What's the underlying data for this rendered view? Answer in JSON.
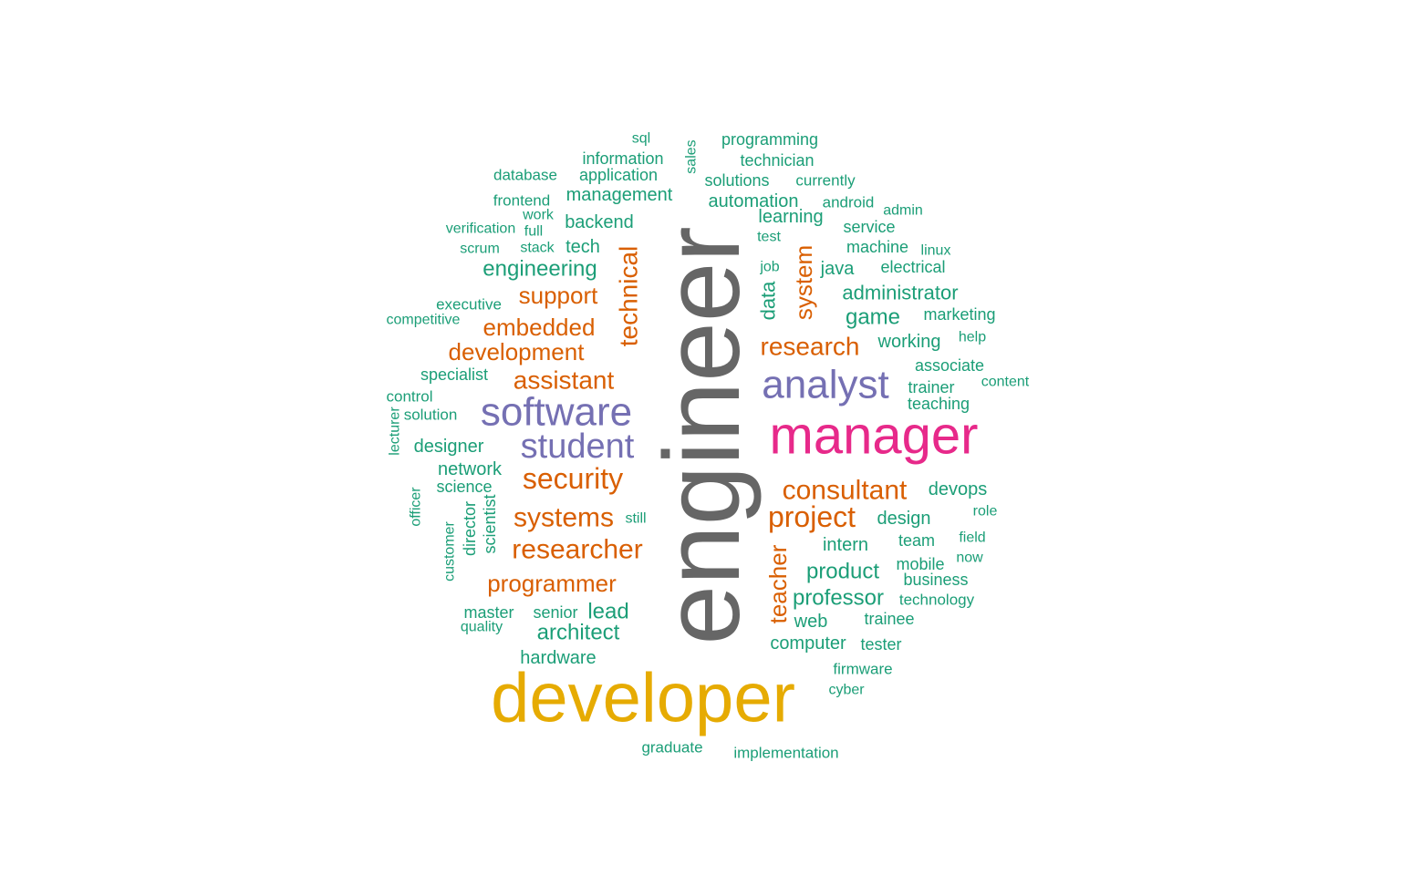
{
  "colors": {
    "engineer": "#666666",
    "gold": "#e6ab02",
    "magenta": "#e7298a",
    "purple": "#7570b3",
    "orange": "#d95f02",
    "teal": "#1b9e77"
  },
  "words": [
    {
      "text": "engineer",
      "color": "engineer"
    },
    {
      "text": "developer",
      "color": "gold"
    },
    {
      "text": "manager",
      "color": "magenta"
    },
    {
      "text": "software",
      "color": "purple"
    },
    {
      "text": "analyst",
      "color": "purple"
    },
    {
      "text": "student",
      "color": "purple"
    },
    {
      "text": "security",
      "color": "orange"
    },
    {
      "text": "consultant",
      "color": "orange"
    },
    {
      "text": "project",
      "color": "orange"
    },
    {
      "text": "systems",
      "color": "orange"
    },
    {
      "text": "researcher",
      "color": "orange"
    },
    {
      "text": "assistant",
      "color": "orange"
    },
    {
      "text": "research",
      "color": "orange"
    },
    {
      "text": "programmer",
      "color": "orange"
    },
    {
      "text": "embedded",
      "color": "orange"
    },
    {
      "text": "development",
      "color": "orange"
    },
    {
      "text": "support",
      "color": "orange"
    },
    {
      "text": "technical",
      "color": "orange"
    },
    {
      "text": "system",
      "color": "orange"
    },
    {
      "text": "teacher",
      "color": "orange"
    },
    {
      "text": "engineering",
      "color": "teal"
    },
    {
      "text": "administrator",
      "color": "teal"
    },
    {
      "text": "game",
      "color": "teal"
    },
    {
      "text": "product",
      "color": "teal"
    },
    {
      "text": "professor",
      "color": "teal"
    },
    {
      "text": "architect",
      "color": "teal"
    },
    {
      "text": "lead",
      "color": "teal"
    },
    {
      "text": "management",
      "color": "teal"
    },
    {
      "text": "backend",
      "color": "teal"
    },
    {
      "text": "automation",
      "color": "teal"
    },
    {
      "text": "design",
      "color": "teal"
    },
    {
      "text": "intern",
      "color": "teal"
    },
    {
      "text": "designer",
      "color": "teal"
    },
    {
      "text": "network",
      "color": "teal"
    },
    {
      "text": "hardware",
      "color": "teal"
    },
    {
      "text": "working",
      "color": "teal"
    },
    {
      "text": "devops",
      "color": "teal"
    },
    {
      "text": "computer",
      "color": "teal"
    },
    {
      "text": "learning",
      "color": "teal"
    },
    {
      "text": "data",
      "color": "teal"
    },
    {
      "text": "tech",
      "color": "teal"
    },
    {
      "text": "java",
      "color": "teal"
    },
    {
      "text": "electrical",
      "color": "teal"
    },
    {
      "text": "marketing",
      "color": "teal"
    },
    {
      "text": "associate",
      "color": "teal"
    },
    {
      "text": "business",
      "color": "teal"
    },
    {
      "text": "team",
      "color": "teal"
    },
    {
      "text": "web",
      "color": "teal"
    },
    {
      "text": "specialist",
      "color": "teal"
    },
    {
      "text": "scientist",
      "color": "teal"
    },
    {
      "text": "director",
      "color": "teal"
    },
    {
      "text": "information",
      "color": "teal"
    },
    {
      "text": "application",
      "color": "teal"
    },
    {
      "text": "technician",
      "color": "teal"
    },
    {
      "text": "solutions",
      "color": "teal"
    },
    {
      "text": "programming",
      "color": "teal"
    },
    {
      "text": "service",
      "color": "teal"
    },
    {
      "text": "machine",
      "color": "teal"
    },
    {
      "text": "trainer",
      "color": "teal"
    },
    {
      "text": "teaching",
      "color": "teal"
    },
    {
      "text": "mobile",
      "color": "teal"
    },
    {
      "text": "trainee",
      "color": "teal"
    },
    {
      "text": "tester",
      "color": "teal"
    },
    {
      "text": "senior",
      "color": "teal"
    },
    {
      "text": "master",
      "color": "teal"
    },
    {
      "text": "science",
      "color": "teal"
    },
    {
      "text": "executive",
      "color": "teal"
    },
    {
      "text": "currently",
      "color": "teal"
    },
    {
      "text": "android",
      "color": "teal"
    },
    {
      "text": "frontend",
      "color": "teal"
    },
    {
      "text": "database",
      "color": "teal"
    },
    {
      "text": "technology",
      "color": "teal"
    },
    {
      "text": "firmware",
      "color": "teal"
    },
    {
      "text": "implementation",
      "color": "teal"
    },
    {
      "text": "graduate",
      "color": "teal"
    },
    {
      "text": "competitive",
      "color": "teal"
    },
    {
      "text": "verification",
      "color": "teal"
    },
    {
      "text": "solution",
      "color": "teal"
    },
    {
      "text": "control",
      "color": "teal"
    },
    {
      "text": "content",
      "color": "teal"
    },
    {
      "text": "customer",
      "color": "teal"
    },
    {
      "text": "quality",
      "color": "teal"
    },
    {
      "text": "cyber",
      "color": "teal"
    },
    {
      "text": "field",
      "color": "teal"
    },
    {
      "text": "now",
      "color": "teal"
    },
    {
      "text": "role",
      "color": "teal"
    },
    {
      "text": "help",
      "color": "teal"
    },
    {
      "text": "linux",
      "color": "teal"
    },
    {
      "text": "admin",
      "color": "teal"
    },
    {
      "text": "test",
      "color": "teal"
    },
    {
      "text": "job",
      "color": "teal"
    },
    {
      "text": "sql",
      "color": "teal"
    },
    {
      "text": "sales",
      "color": "teal"
    },
    {
      "text": "work",
      "color": "teal"
    },
    {
      "text": "full",
      "color": "teal"
    },
    {
      "text": "scrum",
      "color": "teal"
    },
    {
      "text": "stack",
      "color": "teal"
    },
    {
      "text": "still",
      "color": "teal"
    },
    {
      "text": "lecturer",
      "color": "teal"
    },
    {
      "text": "officer",
      "color": "teal"
    }
  ]
}
